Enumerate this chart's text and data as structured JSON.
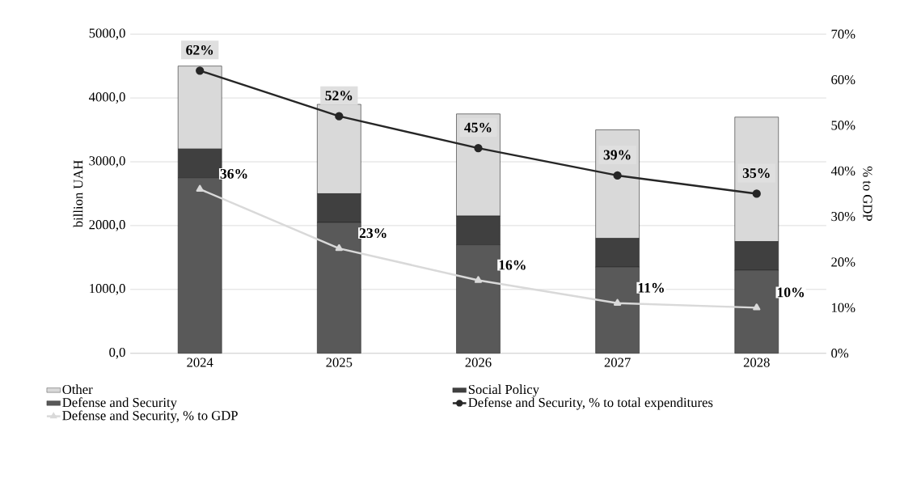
{
  "chart_data": {
    "type": "bar",
    "stacked": true,
    "ylabel": "billion UAH",
    "y2label": "% to GDP",
    "categories": [
      "2024",
      "2025",
      "2026",
      "2027",
      "2028"
    ],
    "series": [
      {
        "name": "Defense and Security",
        "color": "#595959",
        "values": [
          2750,
          2050,
          1700,
          1350,
          1300
        ]
      },
      {
        "name": "Social Policy",
        "color": "#404040",
        "values": [
          450,
          450,
          450,
          450,
          450
        ]
      },
      {
        "name": "Other",
        "color": "#d9d9d9",
        "values": [
          1300,
          1400,
          1600,
          1700,
          1950
        ]
      },
      {
        "name": "Defense and Security, % to total expenditures",
        "type": "line",
        "axis": "y2",
        "color": "#262626",
        "marker": "circle",
        "values": [
          62,
          52,
          45,
          39,
          35
        ],
        "value_labels": [
          "62%",
          "52%",
          "45%",
          "39%",
          "35%"
        ]
      },
      {
        "name": "Defense and Security, % to GDP",
        "type": "line",
        "axis": "y2",
        "color": "#d9d9d9",
        "marker": "triangle",
        "values": [
          36,
          23,
          16,
          11,
          10
        ],
        "value_labels": [
          "36%",
          "23%",
          "16%",
          "11%",
          "10%"
        ]
      }
    ],
    "ylim": [
      0,
      5000
    ],
    "yticks": [
      {
        "value": 0,
        "label": "0,0"
      },
      {
        "value": 1000,
        "label": "1000,0"
      },
      {
        "value": 2000,
        "label": "2000,0"
      },
      {
        "value": 3000,
        "label": "3000,0"
      },
      {
        "value": 4000,
        "label": "4000,0"
      },
      {
        "value": 5000,
        "label": "5000,0"
      }
    ],
    "y2lim": [
      0,
      70
    ],
    "y2ticks": [
      {
        "value": 0,
        "label": "0%"
      },
      {
        "value": 10,
        "label": "10%"
      },
      {
        "value": 20,
        "label": "20%"
      },
      {
        "value": 30,
        "label": "30%"
      },
      {
        "value": 40,
        "label": "40%"
      },
      {
        "value": 50,
        "label": "50%"
      },
      {
        "value": 60,
        "label": "60%"
      },
      {
        "value": 70,
        "label": "70%"
      }
    ],
    "grid": "y",
    "legend": "bottom"
  }
}
